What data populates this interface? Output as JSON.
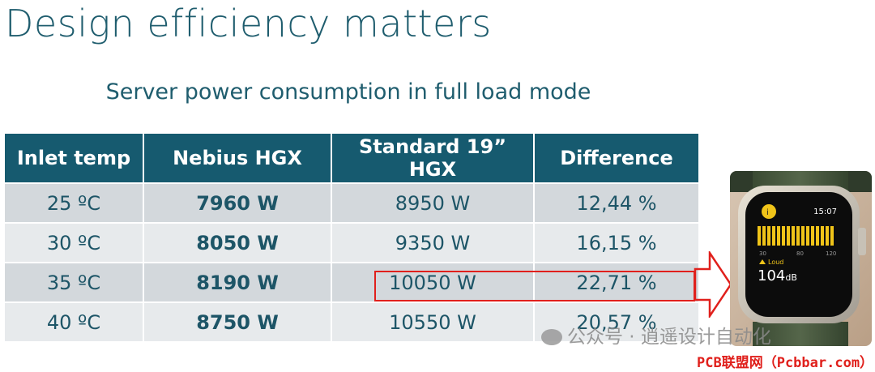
{
  "slide": {
    "title": "Design efficiency matters",
    "subtitle": "Server power consumption in full load mode"
  },
  "table": {
    "headers": [
      "Inlet temp",
      "Nebius HGX",
      "Standard 19” HGX",
      "Difference"
    ],
    "rows": [
      [
        "25 ºC",
        "7960 W",
        "8950 W",
        "12,44 %"
      ],
      [
        "30 ºC",
        "8050 W",
        "9350 W",
        "16,15 %"
      ],
      [
        "35 ºC",
        "8190 W",
        "10050 W",
        "22,71 %"
      ],
      [
        "40 ºC",
        "8750 W",
        "10550 W",
        "20,57 %"
      ]
    ]
  },
  "watch": {
    "time": "15:07",
    "scale": [
      "30",
      "80",
      "120"
    ],
    "status": "Loud",
    "level": "104",
    "unit": "dB"
  },
  "watermark": {
    "cn": "公众号 · 逍遥设计自动化",
    "site": "PCB联盟网（Pcbbar.com）"
  },
  "colors": {
    "header_bg": "#165a6f",
    "text": "#1d5567",
    "highlight": "#e0201c",
    "watch_accent": "#f0c419"
  }
}
